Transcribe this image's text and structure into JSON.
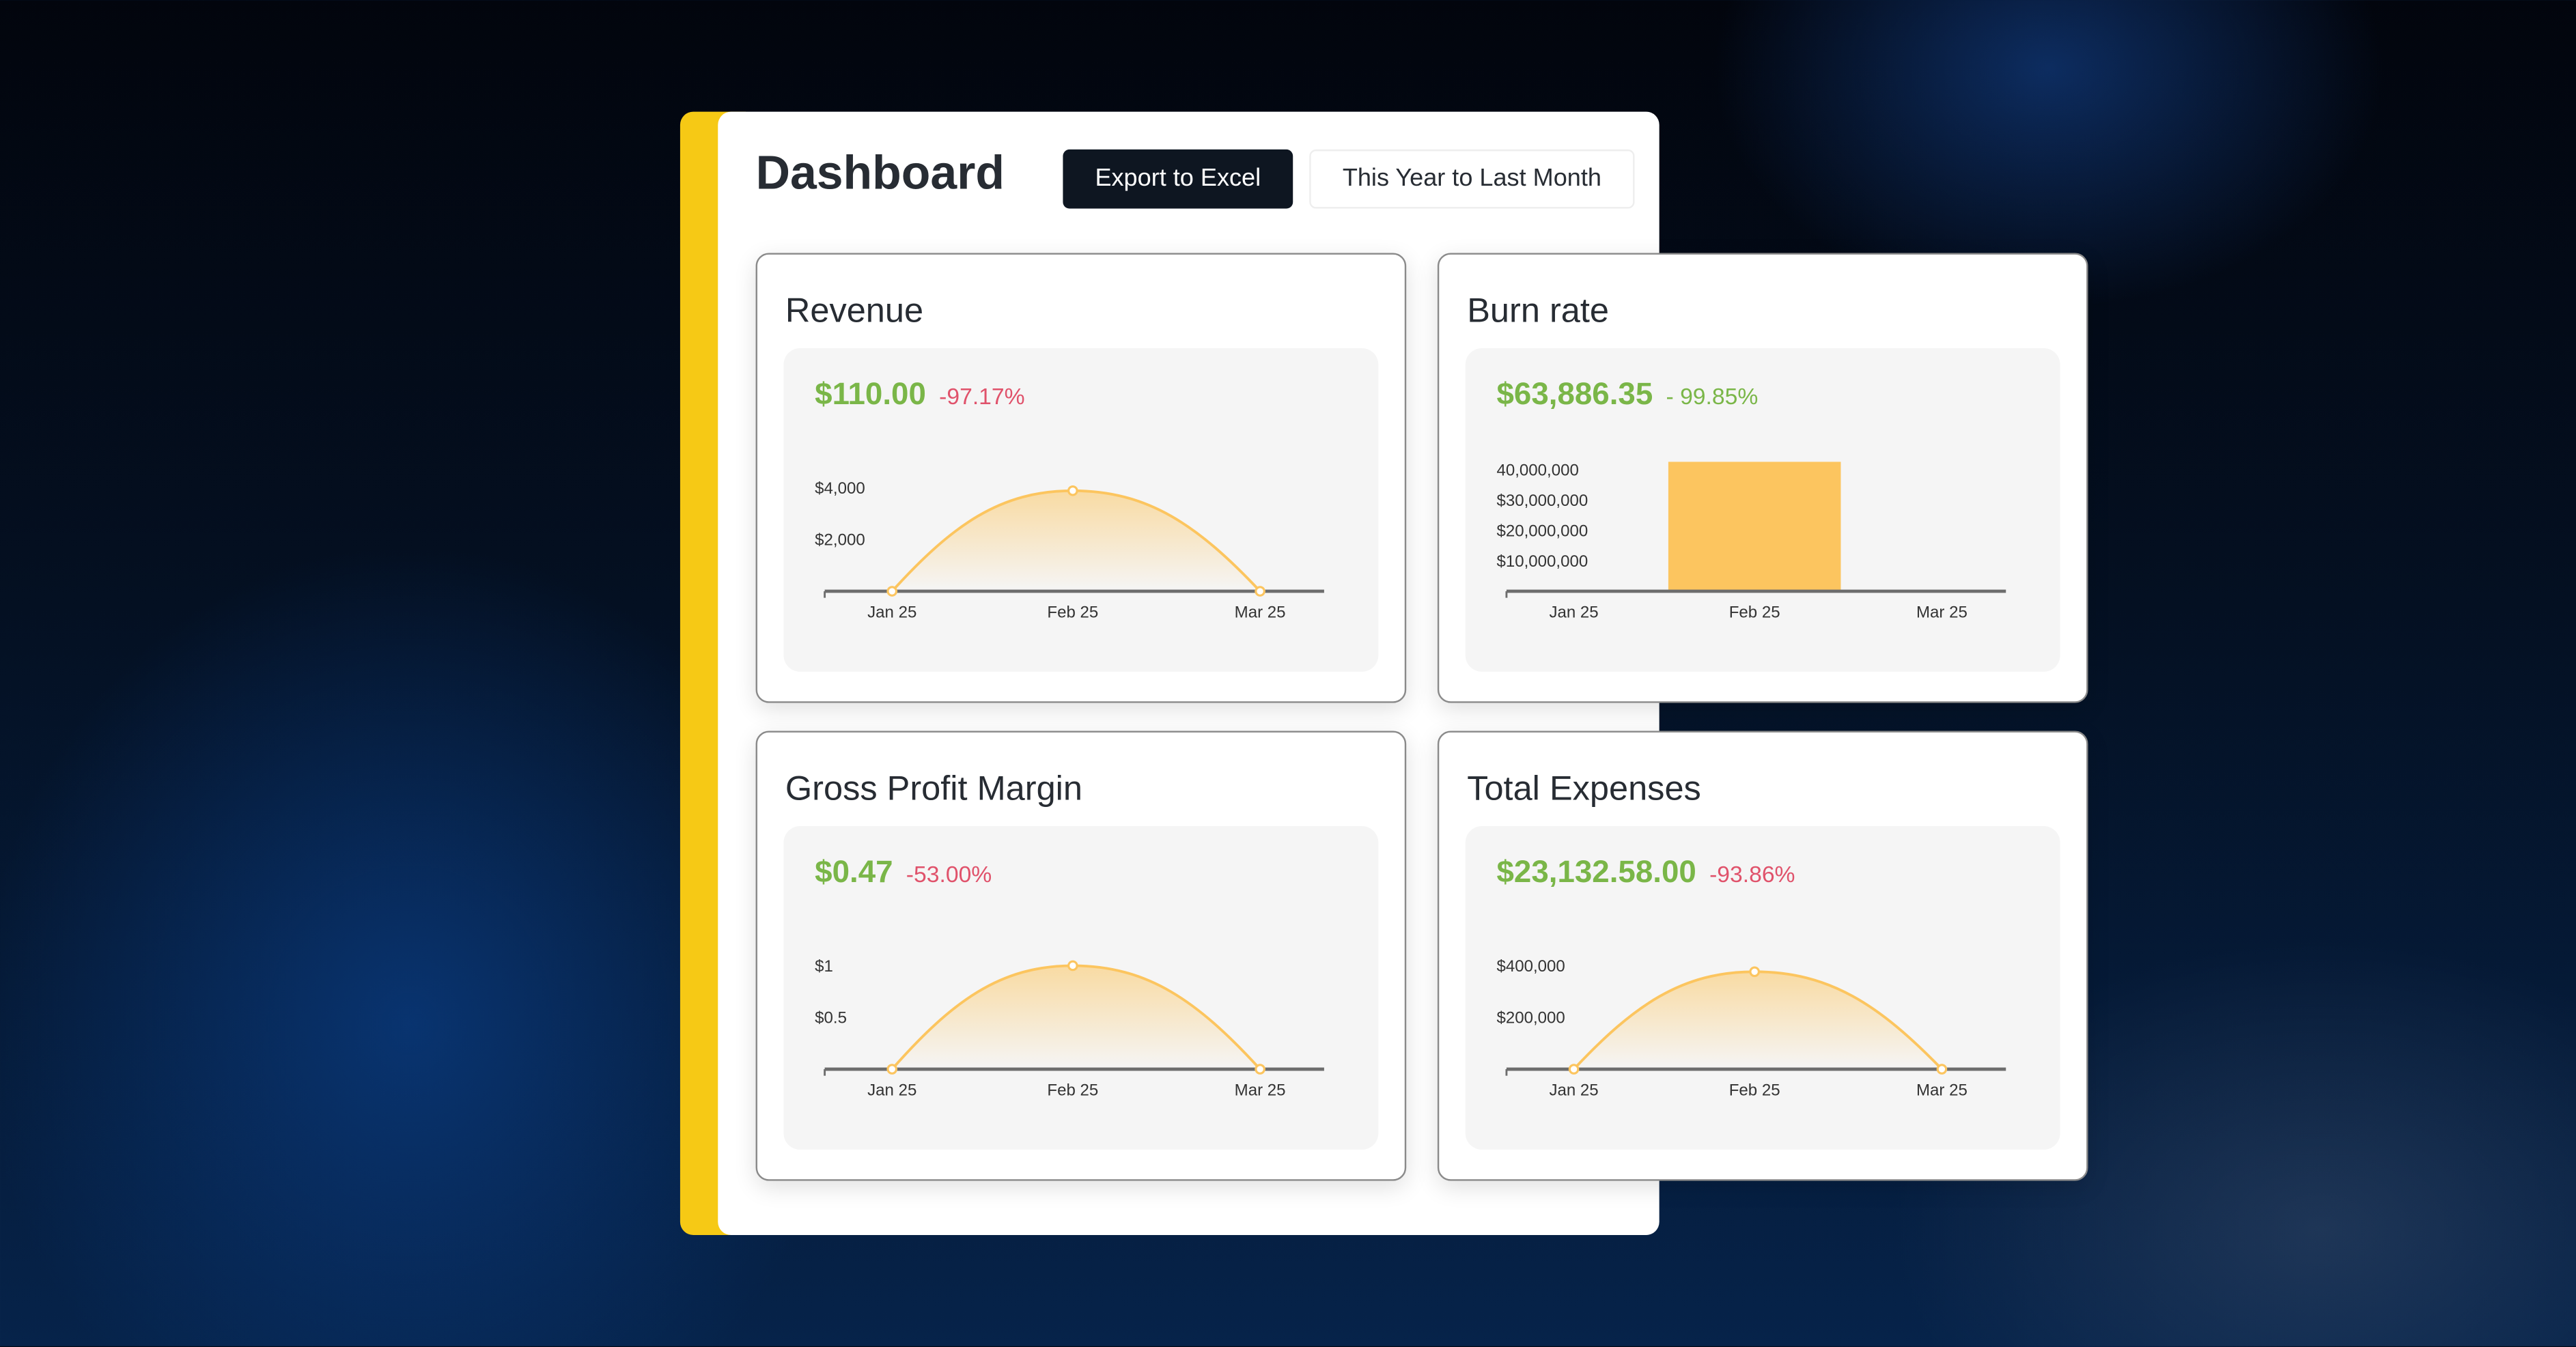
{
  "header": {
    "title": "Dashboard",
    "export_label": "Export to Excel",
    "range_label": "This Year to Last Month"
  },
  "colors": {
    "accent_strip": "#f6c915",
    "value_green": "#7ab648",
    "change_red": "#e0526b",
    "chart_orange": "#fcc55f",
    "button_dark": "#0e1621"
  },
  "cards": [
    {
      "title": "Revenue",
      "value": "$110.00",
      "change": "-97.17%",
      "change_tone": "neg"
    },
    {
      "title": "Burn rate",
      "value": "$63,886.35",
      "change": "- 99.85%",
      "change_tone": "pos"
    },
    {
      "title": "Gross Profit Margin",
      "value": "$0.47",
      "change": "-53.00%",
      "change_tone": "neg"
    },
    {
      "title": "Total Expenses",
      "value": "$23,132.58.00",
      "change": "-93.86%",
      "change_tone": "neg"
    }
  ],
  "chart_data": [
    {
      "type": "area",
      "categories": [
        "Jan 25",
        "Feb 25",
        "Mar 25"
      ],
      "values": [
        0,
        3886,
        0
      ],
      "yticks": [
        {
          "value": 2000,
          "label": "$2,000"
        },
        {
          "value": 4000,
          "label": "$4,000"
        }
      ],
      "ylim": [
        0,
        4000
      ],
      "grid": false
    },
    {
      "type": "bar",
      "categories": [
        "Jan 25",
        "Feb 25",
        "Mar 25"
      ],
      "values": [
        0,
        42600000,
        0
      ],
      "yticks": [
        {
          "value": 10000000,
          "label": "$10,000,000"
        },
        {
          "value": 20000000,
          "label": "$20,000,000"
        },
        {
          "value": 30000000,
          "label": "$30,000,000"
        },
        {
          "value": 40000000,
          "label": "40,000,000"
        }
      ],
      "ylim": [
        0,
        40000000
      ],
      "grid": false
    },
    {
      "type": "area",
      "categories": [
        "Jan 25",
        "Feb 25",
        "Mar 25"
      ],
      "values": [
        0,
        1.0,
        0
      ],
      "yticks": [
        {
          "value": 0.5,
          "label": "$0.5"
        },
        {
          "value": 1,
          "label": "$1"
        }
      ],
      "ylim": [
        0,
        1
      ],
      "grid": false
    },
    {
      "type": "area",
      "categories": [
        "Jan 25",
        "Feb 25",
        "Mar 25"
      ],
      "values": [
        0,
        376750,
        0
      ],
      "yticks": [
        {
          "value": 200000,
          "label": "$200,000"
        },
        {
          "value": 400000,
          "label": "$400,000"
        }
      ],
      "ylim": [
        0,
        400000
      ],
      "grid": false
    }
  ]
}
